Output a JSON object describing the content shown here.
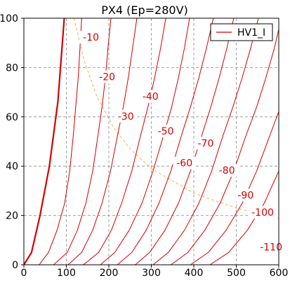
{
  "chart_data": {
    "type": "line",
    "title": "PX4 (Ep=280V)",
    "xlabel": "",
    "ylabel": "",
    "xlim": [
      0,
      600
    ],
    "ylim": [
      0,
      100
    ],
    "xticks": [
      "0",
      "100",
      "200",
      "300",
      "400",
      "500",
      "600"
    ],
    "yticks": [
      "0",
      "20",
      "40",
      "60",
      "80",
      "100"
    ],
    "grid": true,
    "legend": {
      "position": "top-right",
      "entries": [
        "HV1_I"
      ]
    },
    "colors": {
      "curve": "#d40000",
      "hyperbola": "#f2b14a",
      "grid": "#8c8c8c",
      "axis": "#000000"
    },
    "series": [
      {
        "name": "HV1_I",
        "x": [
          0,
          18,
          38,
          60,
          80,
          95
        ],
        "y": [
          0,
          5,
          20,
          40,
          66,
          100
        ]
      },
      {
        "label": "-10",
        "x": [
          36,
          58,
          78,
          96,
          108,
          116,
          122,
          128,
          132,
          136
        ],
        "y": [
          0,
          5,
          14,
          25,
          38,
          52,
          64,
          76,
          88,
          100
        ]
      },
      {
        "label": "-20",
        "x": [
          70,
          102,
          126,
          146,
          162,
          174,
          184,
          192,
          198,
          205
        ],
        "y": [
          0,
          5,
          14,
          25,
          38,
          52,
          64,
          76,
          88,
          100
        ]
      },
      {
        "label": "-30",
        "x": [
          104,
          136,
          162,
          184,
          204,
          220,
          234,
          246,
          256,
          266
        ],
        "y": [
          0,
          5,
          14,
          25,
          38,
          52,
          64,
          76,
          88,
          100
        ]
      },
      {
        "label": "-40",
        "x": [
          140,
          176,
          206,
          230,
          254,
          274,
          292,
          308,
          322,
          334
        ],
        "y": [
          0,
          5,
          14,
          25,
          38,
          52,
          64,
          76,
          88,
          100
        ]
      },
      {
        "label": "-50",
        "x": [
          180,
          214,
          248,
          278,
          304,
          328,
          348,
          364,
          378,
          390
        ],
        "y": [
          0,
          5,
          14,
          25,
          38,
          52,
          64,
          76,
          88,
          100
        ]
      },
      {
        "label": "-60",
        "x": [
          220,
          254,
          288,
          318,
          346,
          370,
          392,
          412,
          430,
          446
        ],
        "y": [
          0,
          5,
          14,
          25,
          38,
          52,
          64,
          76,
          88,
          100
        ]
      },
      {
        "label": "-70",
        "x": [
          262,
          296,
          332,
          364,
          392,
          418,
          440,
          460,
          478,
          494
        ],
        "y": [
          0,
          5,
          14,
          25,
          38,
          52,
          64,
          76,
          88,
          100
        ]
      },
      {
        "label": "-80",
        "x": [
          304,
          340,
          378,
          412,
          442,
          468,
          492,
          514,
          534,
          552
        ],
        "y": [
          0,
          5,
          14,
          25,
          38,
          52,
          64,
          76,
          88,
          100
        ]
      },
      {
        "label": "-90",
        "x": [
          346,
          386,
          426,
          462,
          494,
          522,
          548,
          570,
          590,
          606
        ],
        "y": [
          0,
          5,
          14,
          25,
          38,
          52,
          64,
          76,
          88,
          100
        ]
      },
      {
        "label": "-100",
        "x": [
          392,
          434,
          476,
          514,
          548,
          578,
          604
        ],
        "y": [
          0,
          5,
          14,
          25,
          38,
          52,
          64
        ]
      },
      {
        "label": "-110",
        "x": [
          438,
          482,
          526,
          566,
          600
        ],
        "y": [
          0,
          5,
          14,
          25,
          38
        ]
      }
    ],
    "hyperbola": {
      "x": [
        118,
        140,
        170,
        210,
        250,
        300,
        350,
        400,
        450,
        500,
        550,
        600
      ],
      "y": [
        100,
        84,
        69,
        56,
        47,
        39,
        34,
        29,
        26,
        23,
        21,
        19
      ]
    },
    "annotations": [
      {
        "text": "-10",
        "x": 158,
        "y": 92
      },
      {
        "text": "-20",
        "x": 196,
        "y": 76
      },
      {
        "text": "-30",
        "x": 240,
        "y": 60
      },
      {
        "text": "-40",
        "x": 298,
        "y": 68
      },
      {
        "text": "-50",
        "x": 334,
        "y": 54
      },
      {
        "text": "-60",
        "x": 378,
        "y": 41
      },
      {
        "text": "-70",
        "x": 428,
        "y": 49
      },
      {
        "text": "-80",
        "x": 478,
        "y": 38
      },
      {
        "text": "-90",
        "x": 522,
        "y": 28
      },
      {
        "text": "-100",
        "x": 562,
        "y": 21
      },
      {
        "text": "-110",
        "x": 582,
        "y": 7
      }
    ]
  }
}
